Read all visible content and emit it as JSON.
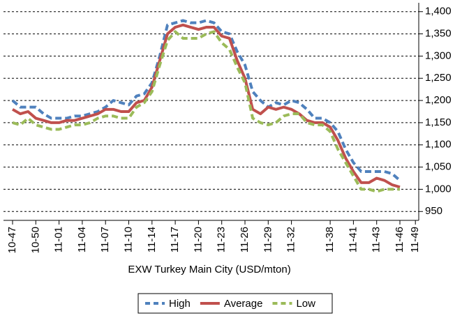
{
  "chart_data": {
    "type": "line",
    "x_label": "EXW Turkey Main City (USD/mton)",
    "categories": [
      "10-47",
      null,
      null,
      "10-50",
      null,
      null,
      "11-01",
      null,
      null,
      "11-04",
      null,
      null,
      "11-07",
      null,
      null,
      "11-10",
      null,
      null,
      "11-14",
      null,
      null,
      "11-17",
      null,
      null,
      "11-20",
      null,
      null,
      "11-23",
      null,
      null,
      "11-26",
      null,
      null,
      "11-29",
      null,
      null,
      "11-32",
      null,
      null,
      null,
      null,
      "11-38",
      null,
      null,
      "11-41",
      null,
      null,
      "11-43",
      null,
      null,
      "11-46",
      null,
      "11-49"
    ],
    "series": [
      {
        "name": "High",
        "color": "#4f81bd",
        "dashed": true,
        "values": [
          1200,
          1185,
          1185,
          1185,
          1170,
          1160,
          1160,
          1160,
          1165,
          1165,
          1170,
          1175,
          1185,
          1200,
          1195,
          1190,
          1210,
          1215,
          1240,
          1300,
          1370,
          1375,
          1380,
          1375,
          1375,
          1380,
          1375,
          1355,
          1350,
          1310,
          1280,
          1220,
          1200,
          1185,
          1195,
          1190,
          1200,
          1195,
          1180,
          1160,
          1160,
          1150,
          1130,
          1090,
          1060,
          1040,
          1040,
          1040,
          1040,
          1035,
          1020,
          null,
          null
        ]
      },
      {
        "name": "Average",
        "color": "#c0504d",
        "dashed": false,
        "values": [
          1180,
          1170,
          1175,
          1160,
          1155,
          1150,
          1150,
          1155,
          1155,
          1160,
          1165,
          1170,
          1180,
          1180,
          1175,
          1175,
          1195,
          1200,
          1230,
          1290,
          1350,
          1365,
          1370,
          1365,
          1360,
          1365,
          1365,
          1345,
          1340,
          1290,
          1250,
          1180,
          1170,
          1185,
          1180,
          1185,
          1180,
          1170,
          1155,
          1150,
          1150,
          1140,
          1110,
          1070,
          1040,
          1015,
          1015,
          1025,
          1020,
          1010,
          1005,
          null,
          null
        ]
      },
      {
        "name": "Low",
        "color": "#9bbb59",
        "dashed": true,
        "values": [
          1150,
          1145,
          1160,
          1145,
          1140,
          1135,
          1135,
          1140,
          1145,
          1145,
          1150,
          1160,
          1165,
          1165,
          1160,
          1160,
          1185,
          1195,
          1220,
          1280,
          1335,
          1355,
          1340,
          1340,
          1340,
          1350,
          1355,
          1330,
          1315,
          1275,
          1240,
          1160,
          1150,
          1145,
          1150,
          1165,
          1170,
          1170,
          1150,
          1145,
          1145,
          1130,
          1090,
          1060,
          1030,
          1000,
          1000,
          995,
          1000,
          1000,
          1000,
          null,
          null
        ]
      }
    ],
    "ylim": [
      930,
      1420
    ],
    "yticks": [
      950,
      {
        "value": 1000,
        "label": "1,000"
      },
      {
        "value": 1050,
        "label": "1,050"
      },
      {
        "value": 1100,
        "label": "1,100"
      },
      {
        "value": 1150,
        "label": "1,150"
      },
      {
        "value": 1200,
        "label": "1,200"
      },
      {
        "value": 1250,
        "label": "1,250"
      },
      {
        "value": 1300,
        "label": "1,300"
      },
      {
        "value": 1350,
        "label": "1,350"
      },
      {
        "value": 1400,
        "label": "1,400"
      }
    ],
    "grid": true,
    "y_axis_side": "right",
    "legend": "bottom"
  }
}
